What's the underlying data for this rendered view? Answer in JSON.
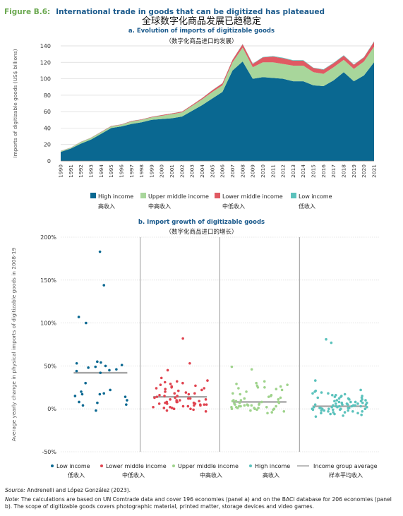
{
  "figure_label": "Figure B.6:",
  "figure_title": "International trade in goods that can be digitized has plateaued",
  "figure_title_cn": "全球数字化商品发展已趋稳定",
  "source_label": "Source:",
  "source_text": "Andrenelli and López González (2023).",
  "note_label": "Note:",
  "note_text": "The calculations are based on UN Comtrade data and cover 196 economies (panel a) and on the BACI database for 206 economies (panel b). The scope of digitizable goods covers photographic material, printed matter, storage devices and video games.",
  "colors": {
    "high": "#0a6891",
    "upper_middle": "#a8d69b",
    "lower_middle": "#e05a63",
    "low": "#5bc2bc",
    "low_dot": "#0a6891",
    "lower_dot": "#e0434f",
    "upper_dot": "#9fd38c",
    "high_dot": "#5bc2bc",
    "avg": "#a6a6a6"
  },
  "chart_data": [
    {
      "type": "area",
      "title": "a. Evolution of imports of digitizable goods",
      "subtitle": "（数字化商品进口的发展）",
      "ylabel": "Imports of digitizable goods (US$ billions)",
      "ylim": [
        0,
        140
      ],
      "yticks": [
        0,
        20,
        40,
        60,
        80,
        100,
        120,
        140
      ],
      "stacked": true,
      "grid": "horizontal",
      "legend_position": "bottom",
      "x": [
        "1990",
        "1991",
        "1992",
        "1993",
        "1994",
        "1995",
        "1996",
        "1997",
        "1998",
        "1999",
        "2000",
        "2001",
        "2002",
        "2003",
        "2004",
        "2005",
        "2006",
        "2007",
        "2008",
        "2009",
        "2010",
        "2011",
        "2012",
        "2013",
        "2014",
        "2015",
        "2016",
        "2017",
        "2018",
        "2019",
        "2020",
        "2021"
      ],
      "series": [
        {
          "name": "High income",
          "name_cn": "高收入",
          "color": "#0a6891",
          "values": [
            11,
            15,
            21,
            26,
            33,
            40,
            42,
            45,
            47,
            50,
            51,
            52,
            54,
            61,
            68,
            76,
            84,
            110,
            121,
            100,
            102,
            101,
            100,
            97,
            97,
            92,
            91,
            98,
            108,
            97,
            104,
            120
          ]
        },
        {
          "name": "Upper middle income",
          "name_cn": "中高收入",
          "color": "#a8d69b",
          "values": [
            1,
            1,
            2,
            2,
            2,
            2,
            2,
            3,
            3,
            3,
            4,
            5,
            5,
            6,
            7,
            8,
            8,
            10,
            17,
            14,
            18,
            19,
            18,
            19,
            19,
            16,
            15,
            16,
            15,
            15,
            17,
            19
          ]
        },
        {
          "name": "Lower middle income",
          "name_cn": "中低收入",
          "color": "#e05a63",
          "values": [
            0.2,
            0.2,
            0.3,
            0.3,
            0.4,
            0.5,
            0.5,
            0.6,
            0.6,
            0.7,
            0.8,
            0.9,
            1,
            1.2,
            1.5,
            2,
            2.5,
            3,
            4,
            4,
            6,
            7,
            7,
            6,
            6,
            5,
            5,
            5,
            5,
            5,
            5,
            6
          ]
        },
        {
          "name": "Low income",
          "name_cn": "低收入",
          "color": "#5bc2bc",
          "values": [
            0.1,
            0.1,
            0.1,
            0.1,
            0.1,
            0.1,
            0.1,
            0.1,
            0.1,
            0.1,
            0.1,
            0.1,
            0.1,
            0.1,
            0.2,
            0.2,
            0.2,
            0.3,
            0.4,
            0.4,
            0.5,
            0.6,
            0.6,
            0.6,
            0.6,
            0.5,
            0.5,
            0.5,
            0.6,
            0.5,
            0.5,
            0.6
          ]
        }
      ]
    },
    {
      "type": "scatter",
      "title": "b. Import growth of digitizable goods",
      "subtitle": "（数字化商品进口的增长）",
      "ylabel": "Average yearly change in physical imports of digitizable goods in 2008-19",
      "ylim": [
        -50,
        200
      ],
      "yticks": [
        -50,
        0,
        50,
        100,
        150,
        200
      ],
      "ytick_labels": [
        "-50%",
        "0%",
        "50%",
        "100%",
        "150%",
        "200%"
      ],
      "legend_position": "bottom",
      "groups": [
        {
          "name": "Low income",
          "name_cn": "低收入",
          "average": 42,
          "values": [
            183,
            144,
            107,
            100,
            55,
            54,
            53,
            51,
            50,
            49,
            48,
            46,
            45,
            44,
            42,
            30,
            22,
            20,
            18,
            17,
            17,
            15,
            14,
            10,
            8,
            7,
            5,
            4,
            -2
          ]
        },
        {
          "name": "Lower middle income",
          "name_cn": "中低收入",
          "average": 14,
          "values": [
            82,
            53,
            45,
            36,
            33,
            32,
            31,
            30,
            29,
            28,
            27,
            26,
            25,
            24,
            24,
            23,
            22,
            21,
            20,
            19,
            18,
            18,
            17,
            16,
            15,
            15,
            14,
            13,
            13,
            12,
            12,
            11,
            11,
            10,
            10,
            9,
            9,
            8,
            8,
            8,
            7,
            7,
            6,
            6,
            6,
            5,
            5,
            5,
            4,
            4,
            3,
            3,
            2,
            2,
            1,
            1,
            0,
            0,
            -1,
            -2,
            -3
          ]
        },
        {
          "name": "Upper middle income",
          "name_cn": "中高收入",
          "average": 8,
          "values": [
            49,
            46,
            32,
            30,
            29,
            28,
            27,
            26,
            25,
            25,
            24,
            23,
            22,
            20,
            18,
            17,
            16,
            15,
            14,
            13,
            12,
            11,
            10,
            10,
            9,
            9,
            8,
            8,
            7,
            7,
            6,
            6,
            5,
            5,
            5,
            4,
            4,
            4,
            3,
            3,
            3,
            2,
            2,
            2,
            1,
            1,
            1,
            0,
            0,
            0,
            -1,
            -1,
            -2,
            -3,
            -4,
            -5
          ]
        },
        {
          "name": "High income",
          "name_cn": "高收入",
          "average": 3,
          "values": [
            81,
            77,
            33,
            22,
            21,
            20,
            19,
            18,
            18,
            17,
            16,
            16,
            15,
            15,
            14,
            14,
            13,
            13,
            12,
            12,
            11,
            11,
            10,
            10,
            9,
            9,
            8,
            8,
            8,
            7,
            7,
            7,
            6,
            6,
            6,
            5,
            5,
            5,
            5,
            4,
            4,
            4,
            3,
            3,
            3,
            3,
            2,
            2,
            2,
            2,
            1,
            1,
            1,
            1,
            0,
            0,
            0,
            0,
            0,
            -1,
            -1,
            -1,
            -2,
            -2,
            -2,
            -3,
            -3,
            -3,
            -4,
            -4,
            -5,
            -5,
            -6,
            -6,
            -7,
            -8,
            -9
          ]
        }
      ],
      "average_label": "Income group average",
      "average_label_cn": "样本平均收入"
    }
  ]
}
